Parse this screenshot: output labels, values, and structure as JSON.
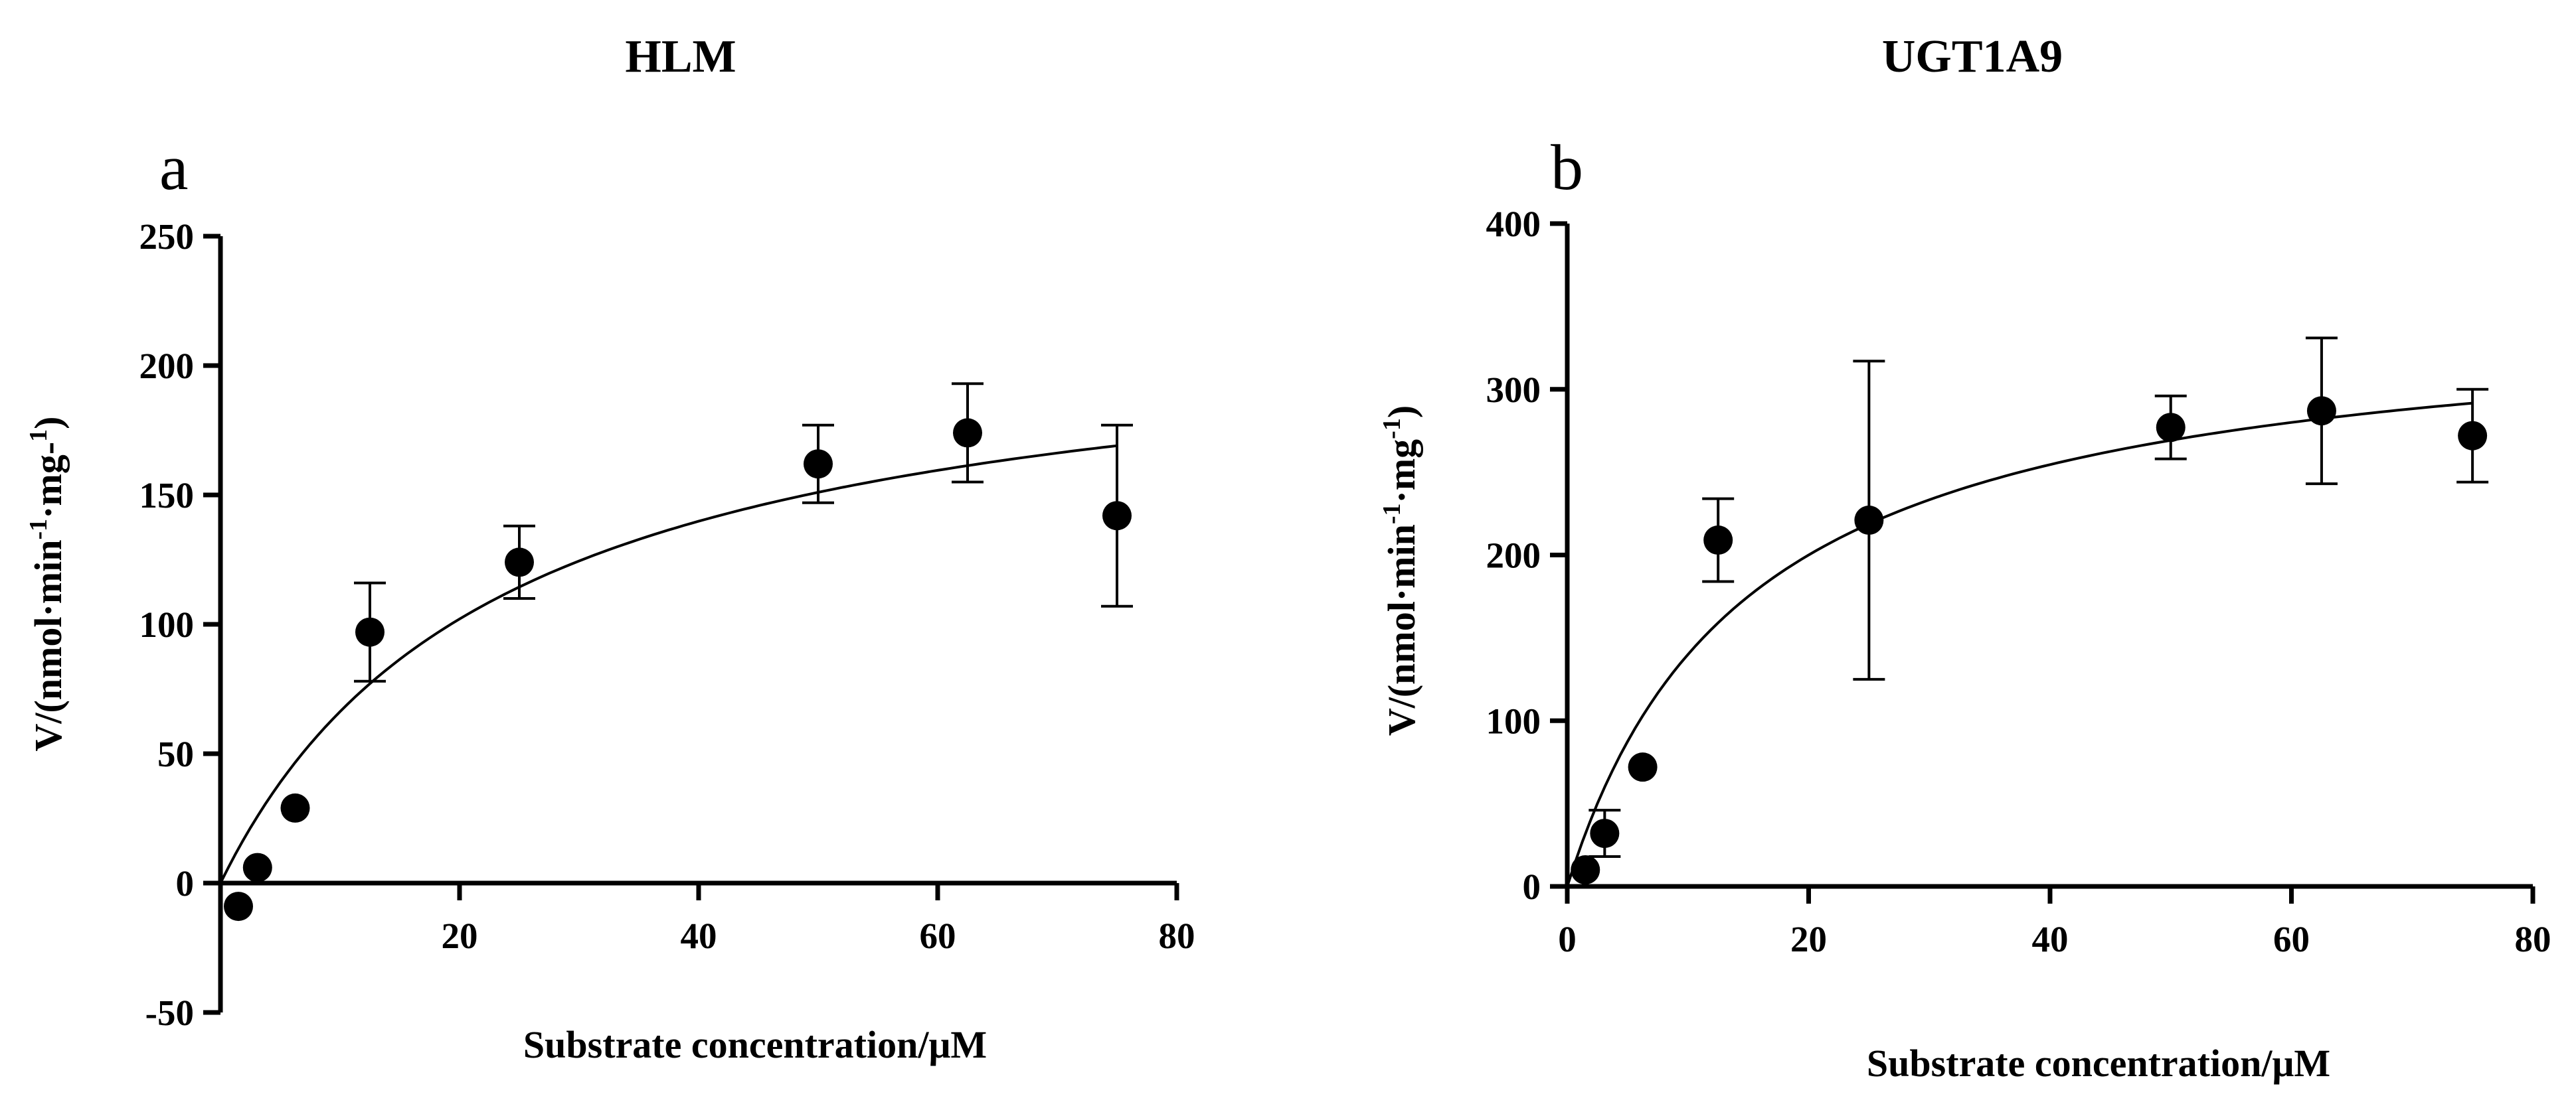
{
  "chart_data": [
    {
      "type": "scatter",
      "panel": "a",
      "title": "HLM",
      "xlabel": "Substrate concentration/μM",
      "ylabel": {
        "prefix": "V/(nmol·min",
        "sup1": "-1",
        "mid": "·mg-",
        "sup2": "1",
        "suffix": ")"
      },
      "xlim": [
        0,
        80
      ],
      "ylim": [
        -50,
        250
      ],
      "xticks": [
        0,
        20,
        40,
        60,
        80
      ],
      "xtick_labels": [
        "",
        "20",
        "40",
        "60",
        "80"
      ],
      "yticks": [
        -50,
        0,
        50,
        100,
        150,
        200,
        250
      ],
      "ytick_labels": [
        "-50",
        "0",
        "50",
        "100",
        "150",
        "200",
        "250"
      ],
      "x_axis_at": 0,
      "points": [
        {
          "x": 1.5,
          "y": -9,
          "err": 0
        },
        {
          "x": 3.1,
          "y": 6,
          "err": 0
        },
        {
          "x": 6.25,
          "y": 29,
          "err": 0
        },
        {
          "x": 12.5,
          "y": 97,
          "err": 19
        },
        {
          "x": 25,
          "y": 124,
          "err": 14
        },
        {
          "x": 50,
          "y": 162,
          "err": 15
        },
        {
          "x": 62.5,
          "y": 174,
          "err": 19
        },
        {
          "x": 75,
          "y": 142,
          "err": 35
        }
      ],
      "fit": {
        "model": "Michaelis-Menten",
        "vmax": 222,
        "km": 23.5,
        "x_range": [
          0,
          75
        ]
      }
    },
    {
      "type": "scatter",
      "panel": "b",
      "title": "UGT1A9",
      "xlabel": "Substrate concentration/μM",
      "ylabel": {
        "prefix": "V/(nmol·min",
        "sup1": "-1",
        "mid": "·mg",
        "sup2": "-1",
        "suffix": ")"
      },
      "xlim": [
        0,
        80
      ],
      "ylim": [
        0,
        400
      ],
      "xticks": [
        0,
        20,
        40,
        60,
        80
      ],
      "xtick_labels": [
        "0",
        "20",
        "40",
        "60",
        "80"
      ],
      "yticks": [
        0,
        100,
        200,
        300,
        400
      ],
      "ytick_labels": [
        "0",
        "100",
        "200",
        "300",
        "400"
      ],
      "x_axis_at": 0,
      "points": [
        {
          "x": 1.5,
          "y": 10,
          "err": 0
        },
        {
          "x": 3.1,
          "y": 32,
          "err": 14
        },
        {
          "x": 6.25,
          "y": 72,
          "err": 0
        },
        {
          "x": 12.5,
          "y": 209,
          "err": 25
        },
        {
          "x": 25,
          "y": 221,
          "err": 96
        },
        {
          "x": 50,
          "y": 277,
          "err": 19
        },
        {
          "x": 62.5,
          "y": 287,
          "err": 44
        },
        {
          "x": 75,
          "y": 272,
          "err": 28
        }
      ],
      "fit": {
        "model": "Michaelis-Menten",
        "vmax": 350,
        "km": 15,
        "x_range": [
          0,
          75
        ]
      }
    }
  ]
}
